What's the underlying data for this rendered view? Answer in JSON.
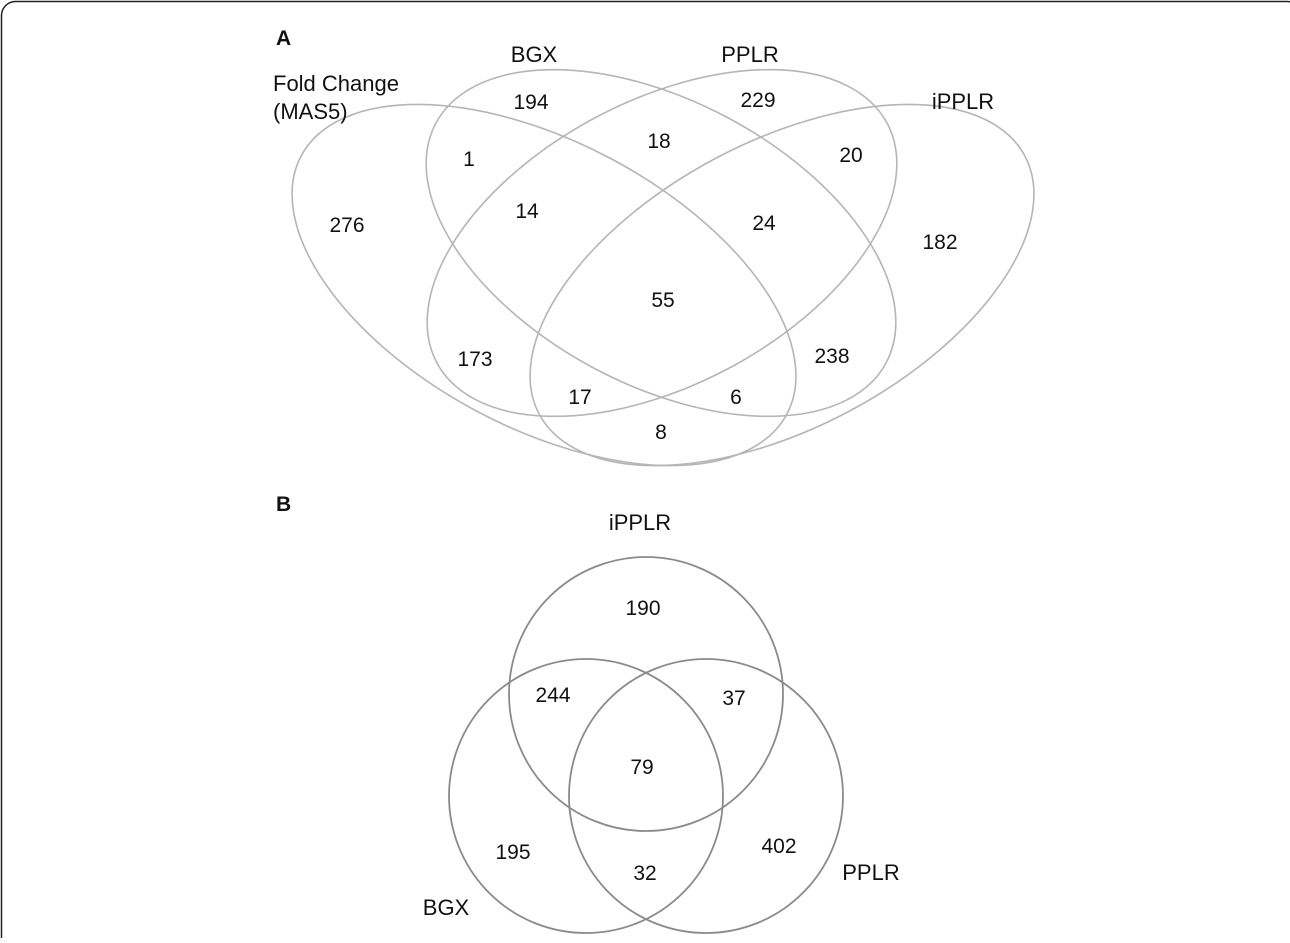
{
  "panel_a": {
    "panel_label": "A",
    "set_labels": {
      "fold_change_line1": "Fold Change",
      "fold_change_line2": "(MAS5)",
      "bgx": "BGX",
      "pplr": "PPLR",
      "ipplr": "iPPLR"
    },
    "counts": [
      {
        "region": "fold-change-only",
        "value": "276"
      },
      {
        "region": "bgx-only",
        "value": "194"
      },
      {
        "region": "pplr-only",
        "value": "229"
      },
      {
        "region": "ipplr-only",
        "value": "182"
      },
      {
        "region": "fold-change-bgx",
        "value": "1"
      },
      {
        "region": "bgx-pplr",
        "value": "18"
      },
      {
        "region": "pplr-ipplr",
        "value": "20"
      },
      {
        "region": "fold-change-bgx-pplr",
        "value": "14"
      },
      {
        "region": "bgx-pplr-ipplr",
        "value": "24"
      },
      {
        "region": "all-four",
        "value": "55"
      },
      {
        "region": "fold-change-pplr",
        "value": "173"
      },
      {
        "region": "bgx-ipplr",
        "value": "238"
      },
      {
        "region": "fold-change-pplr-ipplr",
        "value": "17"
      },
      {
        "region": "fold-change-bgx-ipplr",
        "value": "6"
      },
      {
        "region": "fold-change-ipplr",
        "value": "8"
      }
    ],
    "ellipse_color": "#b5b5b5"
  },
  "panel_b": {
    "panel_label": "B",
    "set_labels": {
      "ipplr": "iPPLR",
      "bgx": "BGX",
      "pplr": "PPLR"
    },
    "counts": [
      {
        "region": "ipplr-only",
        "value": "190"
      },
      {
        "region": "ipplr-bgx",
        "value": "244"
      },
      {
        "region": "ipplr-pplr",
        "value": "37"
      },
      {
        "region": "all-three",
        "value": "79"
      },
      {
        "region": "bgx-only",
        "value": "195"
      },
      {
        "region": "bgx-pplr",
        "value": "32"
      },
      {
        "region": "pplr-only",
        "value": "402"
      }
    ],
    "circle_color": "#8a8a8a"
  }
}
